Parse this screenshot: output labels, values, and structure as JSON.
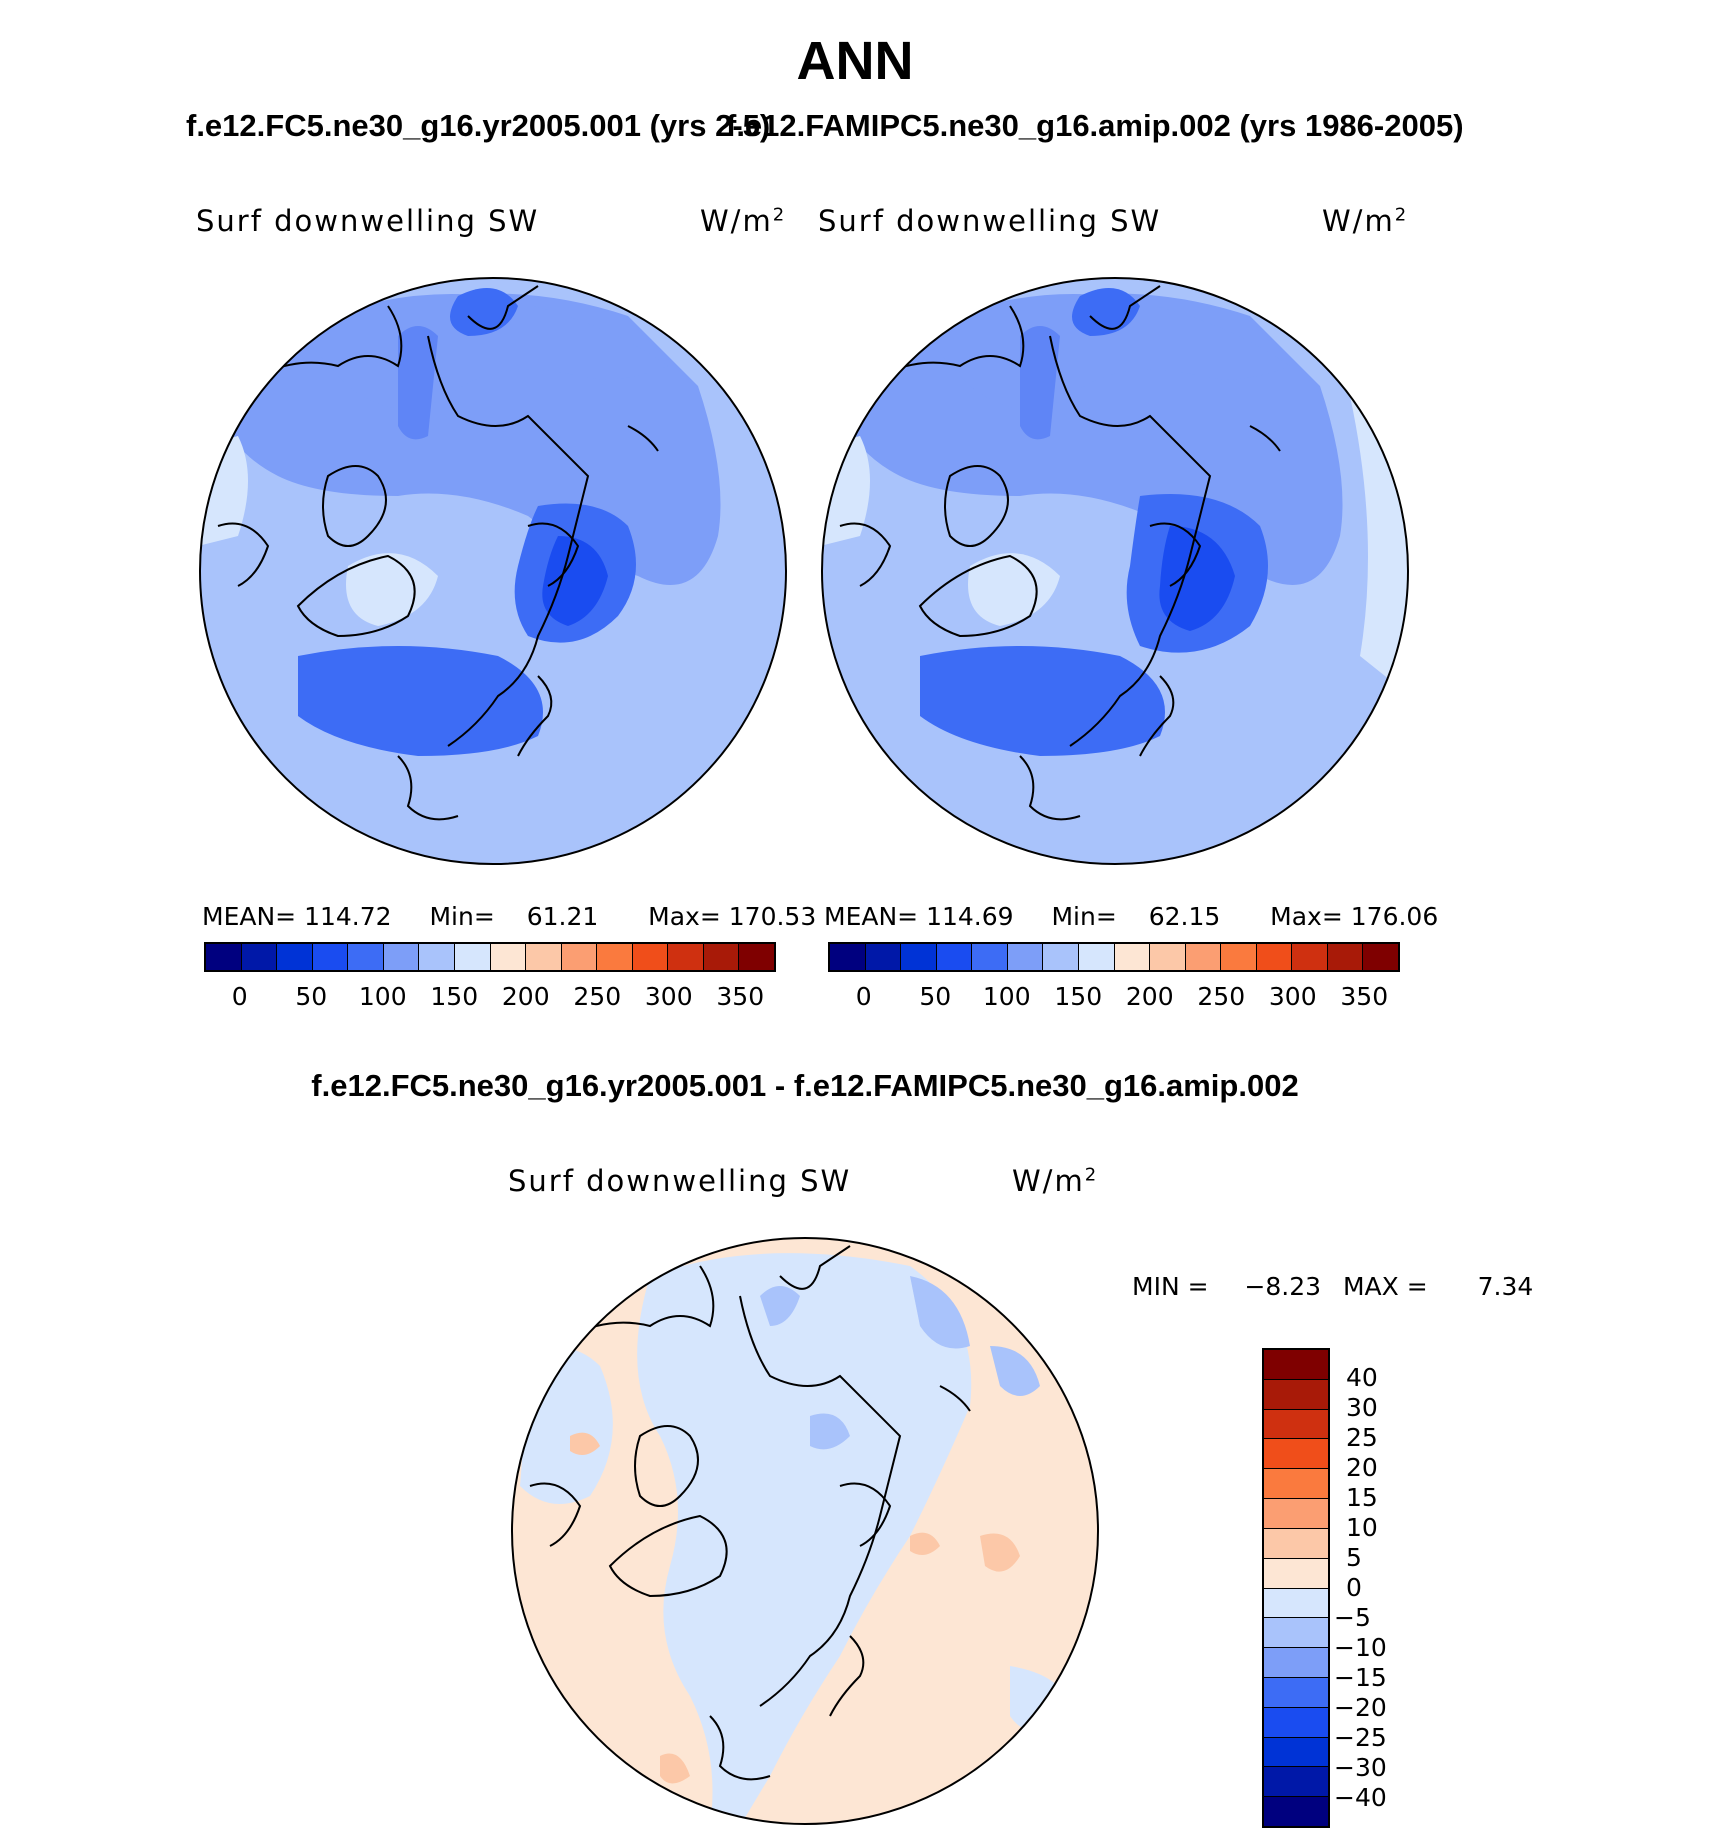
{
  "title": "ANN",
  "panels": [
    {
      "case_title": "f.e12.FC5.ne30_g16.yr2005.001 (yrs 2-5)",
      "variable": "Surf  downwelling  SW",
      "units": "W/m",
      "units_exp": "2",
      "mean_label": "MEAN=",
      "mean": "114.72",
      "min_label": "Min=",
      "min": "61.21",
      "max_label": "Max=",
      "max": "170.53"
    },
    {
      "case_title": "f.e12.FAMIPC5.ne30_g16.amip.002 (yrs 1986-2005)",
      "variable": "Surf  downwelling  SW",
      "units": "W/m",
      "units_exp": "2",
      "mean_label": "MEAN=",
      "mean": "114.69",
      "min_label": "Min=",
      "min": "62.15",
      "max_label": "Max=",
      "max": "176.06"
    }
  ],
  "colorbar_abs": {
    "colors": [
      "#00007f",
      "#0018a8",
      "#0033d6",
      "#1a4cf0",
      "#3d6cf5",
      "#7d9ef8",
      "#a9c3fb",
      "#d6e6fd",
      "#fde6d4",
      "#fcc8a8",
      "#fb9e72",
      "#fa7a3e",
      "#f04e1a",
      "#cf3010",
      "#a81a08",
      "#7f0000"
    ],
    "ticks": [
      "0",
      "50",
      "100",
      "150",
      "200",
      "250",
      "300",
      "350"
    ]
  },
  "diff": {
    "title": "f.e12.FC5.ne30_g16.yr2005.001 - f.e12.FAMIPC5.ne30_g16.amip.002",
    "variable": "Surf  downwelling  SW",
    "units": "W/m",
    "units_exp": "2",
    "min_label": "MIN  =",
    "min": "−8.23",
    "max_label": "MAX  =",
    "max": "7.34",
    "colors_top_to_bottom": [
      "#7f0000",
      "#a81a08",
      "#cf3010",
      "#f04e1a",
      "#fa7a3e",
      "#fb9e72",
      "#fcc8a8",
      "#fde6d4",
      "#d6e6fd",
      "#a9c3fb",
      "#7d9ef8",
      "#3d6cf5",
      "#1a4cf0",
      "#0033d6",
      "#0018a8",
      "#00007f"
    ],
    "ticks": [
      "40",
      "30",
      "25",
      "20",
      "15",
      "10",
      "5",
      "0",
      "−5",
      "−10",
      "−15",
      "−20",
      "−25",
      "−30",
      "−40"
    ]
  }
}
